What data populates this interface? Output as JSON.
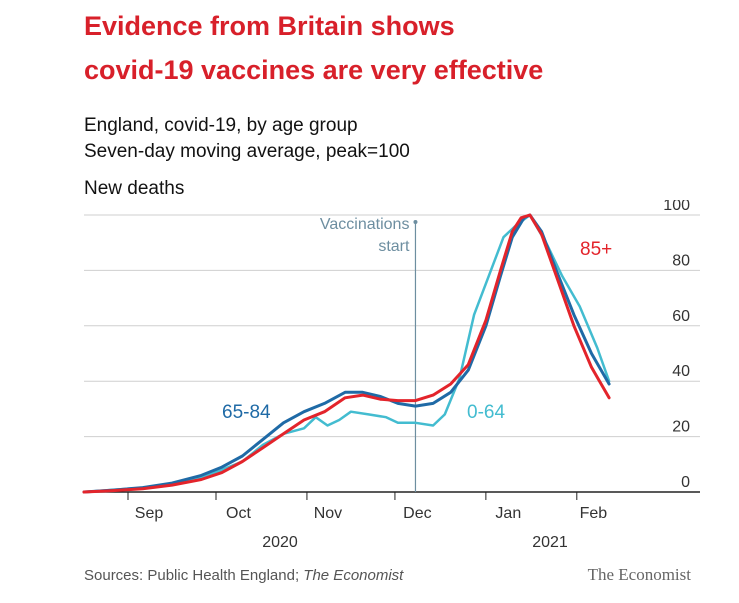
{
  "headline": {
    "line1": "Evidence from Britain shows",
    "line2": "covid-19 vaccines are very effective"
  },
  "subtitle": {
    "line1": "England, covid-19, by age group",
    "line2": "Seven-day moving average, peak=100"
  },
  "source": {
    "prefix": "Sources: Public Health England; ",
    "italic": "The Economist"
  },
  "brand": "The Economist",
  "colors": {
    "s65_84": "#1f6aa6",
    "s0_64": "#43bcd0",
    "s85plus": "#e3242b",
    "annotation": "#6d8ea0",
    "grid": "#cfcfcf"
  },
  "chart_data": {
    "type": "line",
    "title": "New deaths",
    "xlabel": "",
    "ylabel": "",
    "ylim": [
      0,
      100
    ],
    "yticks": [
      0,
      20,
      40,
      60,
      80,
      100
    ],
    "x_range": [
      "2020-08-17",
      "2021-02-28"
    ],
    "xticks": [
      {
        "label": "Sep",
        "date": "2020-09-01"
      },
      {
        "label": "Oct",
        "date": "2020-10-01"
      },
      {
        "label": "Nov",
        "date": "2020-11-01"
      },
      {
        "label": "Dec",
        "date": "2020-12-01"
      },
      {
        "label": "Jan",
        "date": "2021-01-01"
      },
      {
        "label": "Feb",
        "date": "2021-02-01"
      }
    ],
    "years": [
      {
        "label": "2020"
      },
      {
        "label": "2021"
      }
    ],
    "annotation": {
      "text_line1": "Vaccinations",
      "text_line2": "start",
      "date": "2020-12-08"
    },
    "series": [
      {
        "name": "65-84",
        "color_key": "s65_84",
        "points": [
          [
            "2020-08-17",
            0
          ],
          [
            "2020-08-27",
            0.7
          ],
          [
            "2020-09-06",
            1.6
          ],
          [
            "2020-09-16",
            3.2
          ],
          [
            "2020-09-26",
            6
          ],
          [
            "2020-10-03",
            9
          ],
          [
            "2020-10-10",
            13
          ],
          [
            "2020-10-17",
            19
          ],
          [
            "2020-10-24",
            25
          ],
          [
            "2020-10-31",
            29
          ],
          [
            "2020-11-07",
            32
          ],
          [
            "2020-11-14",
            36
          ],
          [
            "2020-11-20",
            36
          ],
          [
            "2020-11-26",
            34.5
          ],
          [
            "2020-12-02",
            32
          ],
          [
            "2020-12-08",
            31
          ],
          [
            "2020-12-14",
            32
          ],
          [
            "2020-12-20",
            36
          ],
          [
            "2020-12-26",
            44
          ],
          [
            "2021-01-01",
            60
          ],
          [
            "2021-01-06",
            78
          ],
          [
            "2021-01-10",
            92
          ],
          [
            "2021-01-14",
            99
          ],
          [
            "2021-01-16",
            100
          ],
          [
            "2021-01-20",
            94
          ],
          [
            "2021-01-25",
            80
          ],
          [
            "2021-01-31",
            64
          ],
          [
            "2021-02-06",
            50
          ],
          [
            "2021-02-12",
            39
          ]
        ]
      },
      {
        "name": "0-64",
        "color_key": "s0_64",
        "points": [
          [
            "2020-08-17",
            0
          ],
          [
            "2020-08-27",
            0.8
          ],
          [
            "2020-09-06",
            1.5
          ],
          [
            "2020-09-16",
            3
          ],
          [
            "2020-09-26",
            5
          ],
          [
            "2020-10-03",
            8
          ],
          [
            "2020-10-10",
            11
          ],
          [
            "2020-10-17",
            17
          ],
          [
            "2020-10-24",
            21
          ],
          [
            "2020-10-31",
            23
          ],
          [
            "2020-11-04",
            27
          ],
          [
            "2020-11-08",
            24
          ],
          [
            "2020-11-12",
            26
          ],
          [
            "2020-11-16",
            29
          ],
          [
            "2020-11-22",
            28
          ],
          [
            "2020-11-28",
            27
          ],
          [
            "2020-12-02",
            25
          ],
          [
            "2020-12-08",
            25
          ],
          [
            "2020-12-14",
            24
          ],
          [
            "2020-12-18",
            28
          ],
          [
            "2020-12-23",
            41
          ],
          [
            "2020-12-28",
            64
          ],
          [
            "2021-01-02",
            78
          ],
          [
            "2021-01-07",
            92
          ],
          [
            "2021-01-11",
            96
          ],
          [
            "2021-01-16",
            100
          ],
          [
            "2021-01-22",
            89
          ],
          [
            "2021-01-27",
            78
          ],
          [
            "2021-02-02",
            67
          ],
          [
            "2021-02-08",
            52
          ],
          [
            "2021-02-12",
            40
          ]
        ]
      },
      {
        "name": "85+",
        "color_key": "s85plus",
        "points": [
          [
            "2020-08-17",
            0
          ],
          [
            "2020-08-27",
            0.5
          ],
          [
            "2020-09-06",
            1.2
          ],
          [
            "2020-09-16",
            2.5
          ],
          [
            "2020-09-26",
            4.5
          ],
          [
            "2020-10-03",
            7
          ],
          [
            "2020-10-10",
            11
          ],
          [
            "2020-10-17",
            16
          ],
          [
            "2020-10-24",
            21
          ],
          [
            "2020-10-31",
            26
          ],
          [
            "2020-11-07",
            29
          ],
          [
            "2020-11-14",
            34
          ],
          [
            "2020-11-20",
            35
          ],
          [
            "2020-11-26",
            33.5
          ],
          [
            "2020-12-02",
            33
          ],
          [
            "2020-12-08",
            33
          ],
          [
            "2020-12-14",
            35
          ],
          [
            "2020-12-20",
            39
          ],
          [
            "2020-12-26",
            46
          ],
          [
            "2021-01-01",
            62
          ],
          [
            "2021-01-06",
            80
          ],
          [
            "2021-01-10",
            94
          ],
          [
            "2021-01-13",
            99
          ],
          [
            "2021-01-16",
            100
          ],
          [
            "2021-01-20",
            93
          ],
          [
            "2021-01-25",
            78
          ],
          [
            "2021-01-31",
            60
          ],
          [
            "2021-02-06",
            45
          ],
          [
            "2021-02-12",
            34
          ]
        ]
      }
    ]
  }
}
